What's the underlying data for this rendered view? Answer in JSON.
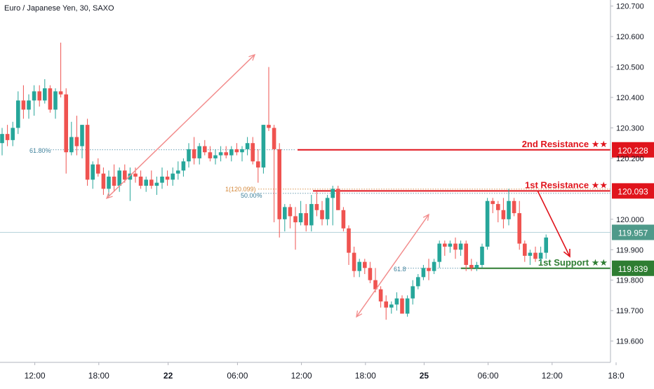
{
  "chart_data": {
    "type": "candlestick",
    "title": "Euro / Japanese Yen, 30, SAXO",
    "ylim": [
      119.53,
      120.72
    ],
    "x_ticks": [
      "12:00",
      "18:00",
      "22",
      "06:00",
      "12:00",
      "18:00",
      "25",
      "06:00",
      "12:00",
      "18:0"
    ],
    "y_ticks": [
      "120.700",
      "120.600",
      "120.500",
      "120.400",
      "120.300",
      "120.200",
      "120.000",
      "119.900",
      "119.800",
      "119.700",
      "119.600"
    ],
    "price_labels": [
      {
        "name": "2nd Resistance ★★",
        "value": 120.228,
        "text": "120.228",
        "color": "#e0141c"
      },
      {
        "name": "1st Resistance ★★",
        "value": 120.093,
        "text": "120.093",
        "color": "#e0141c"
      },
      {
        "name": "current",
        "value": 119.957,
        "text": "119.957",
        "color": "#4f9a8a"
      },
      {
        "name": "1st Support ★★",
        "value": 119.839,
        "text": "119.839",
        "color": "#2e7d32"
      }
    ],
    "annotations": [
      "61.80%",
      "1(120.099)",
      "50.00%",
      "61.8"
    ],
    "colors": {
      "up": "#26a69a",
      "down": "#ef5350",
      "fib": "#3c7f9a",
      "arrow": "#f28c8c"
    },
    "candles": [
      [
        120.25,
        120.3,
        120.21,
        120.28
      ],
      [
        120.28,
        120.31,
        120.24,
        120.26
      ],
      [
        120.26,
        120.32,
        120.24,
        120.3
      ],
      [
        120.3,
        120.42,
        120.28,
        120.39
      ],
      [
        120.39,
        120.44,
        120.33,
        120.36
      ],
      [
        120.36,
        120.41,
        120.33,
        120.39
      ],
      [
        120.39,
        120.44,
        120.34,
        120.42
      ],
      [
        120.42,
        120.44,
        120.37,
        120.39
      ],
      [
        120.39,
        120.46,
        120.38,
        120.43
      ],
      [
        120.43,
        120.44,
        120.35,
        120.36
      ],
      [
        120.36,
        120.43,
        120.33,
        120.42
      ],
      [
        120.42,
        120.58,
        120.4,
        120.41
      ],
      [
        120.41,
        120.43,
        120.15,
        120.22
      ],
      [
        120.22,
        120.32,
        120.21,
        120.27
      ],
      [
        120.27,
        120.34,
        120.21,
        120.24
      ],
      [
        120.24,
        120.31,
        120.2,
        120.31
      ],
      [
        120.31,
        120.33,
        120.11,
        120.13
      ],
      [
        120.13,
        120.19,
        120.1,
        120.18
      ],
      [
        120.18,
        120.2,
        120.14,
        120.15
      ],
      [
        120.15,
        120.17,
        120.08,
        120.1
      ],
      [
        120.1,
        120.16,
        120.07,
        120.14
      ],
      [
        120.14,
        120.18,
        120.09,
        120.11
      ],
      [
        120.11,
        120.17,
        120.09,
        120.16
      ],
      [
        120.16,
        120.18,
        120.12,
        120.13
      ],
      [
        120.13,
        120.17,
        120.06,
        120.15
      ],
      [
        120.15,
        120.17,
        120.12,
        120.14
      ],
      [
        120.14,
        120.16,
        120.1,
        120.11
      ],
      [
        120.11,
        120.14,
        120.09,
        120.13
      ],
      [
        120.13,
        120.16,
        120.1,
        120.11
      ],
      [
        120.11,
        120.14,
        120.08,
        120.12
      ],
      [
        120.12,
        120.17,
        120.1,
        120.14
      ],
      [
        120.14,
        120.16,
        120.11,
        120.13
      ],
      [
        120.13,
        120.17,
        120.11,
        120.15
      ],
      [
        120.15,
        120.19,
        120.13,
        120.16
      ],
      [
        120.16,
        120.2,
        120.14,
        120.19
      ],
      [
        120.19,
        120.25,
        120.17,
        120.23
      ],
      [
        120.23,
        120.27,
        120.18,
        120.2
      ],
      [
        120.2,
        120.25,
        120.18,
        120.24
      ],
      [
        120.24,
        120.26,
        120.21,
        120.22
      ],
      [
        120.22,
        120.24,
        120.19,
        120.2
      ],
      [
        120.2,
        120.23,
        120.18,
        120.21
      ],
      [
        120.21,
        120.24,
        120.19,
        120.22
      ],
      [
        120.22,
        120.24,
        120.2,
        120.21
      ],
      [
        120.21,
        120.24,
        120.19,
        120.23
      ],
      [
        120.23,
        120.25,
        120.21,
        120.22
      ],
      [
        120.22,
        120.24,
        120.19,
        120.23
      ],
      [
        120.23,
        120.27,
        120.21,
        120.25
      ],
      [
        120.25,
        120.27,
        120.18,
        120.19
      ],
      [
        120.19,
        120.23,
        120.12,
        120.17
      ],
      [
        120.17,
        120.31,
        120.15,
        120.31
      ],
      [
        120.31,
        120.5,
        120.29,
        120.3
      ],
      [
        120.3,
        120.31,
        119.99,
        120.23
      ],
      [
        120.23,
        120.25,
        119.94,
        120.0
      ],
      [
        120.0,
        120.05,
        119.96,
        120.04
      ],
      [
        120.04,
        120.05,
        119.97,
        120.01
      ],
      [
        120.01,
        120.04,
        119.9,
        119.99
      ],
      [
        119.99,
        120.06,
        119.98,
        120.02
      ],
      [
        120.02,
        120.05,
        119.96,
        119.98
      ],
      [
        119.98,
        120.08,
        119.96,
        120.05
      ],
      [
        120.05,
        120.09,
        120.01,
        120.03
      ],
      [
        120.03,
        120.06,
        119.98,
        120.0
      ],
      [
        120.0,
        120.08,
        119.98,
        120.07
      ],
      [
        120.07,
        120.11,
        119.98,
        120.1
      ],
      [
        120.1,
        120.11,
        120.03,
        120.03
      ],
      [
        120.03,
        120.04,
        119.96,
        119.97
      ],
      [
        119.97,
        119.98,
        119.85,
        119.89
      ],
      [
        119.89,
        119.91,
        119.81,
        119.83
      ],
      [
        119.83,
        119.87,
        119.81,
        119.86
      ],
      [
        119.86,
        119.87,
        119.82,
        119.84
      ],
      [
        119.84,
        119.86,
        119.79,
        119.8
      ],
      [
        119.8,
        119.84,
        119.76,
        119.77
      ],
      [
        119.77,
        119.78,
        119.71,
        119.73
      ],
      [
        119.73,
        119.75,
        119.67,
        119.71
      ],
      [
        119.71,
        119.73,
        119.69,
        119.72
      ],
      [
        119.72,
        119.76,
        119.7,
        119.74
      ],
      [
        119.74,
        119.75,
        119.69,
        119.69
      ],
      [
        119.69,
        119.75,
        119.68,
        119.74
      ],
      [
        119.74,
        119.8,
        119.72,
        119.78
      ],
      [
        119.78,
        119.82,
        119.77,
        119.81
      ],
      [
        119.81,
        119.85,
        119.8,
        119.84
      ],
      [
        119.84,
        119.87,
        119.8,
        119.83
      ],
      [
        119.83,
        119.87,
        119.82,
        119.86
      ],
      [
        119.86,
        119.93,
        119.84,
        119.92
      ],
      [
        119.92,
        119.93,
        119.88,
        119.91
      ],
      [
        119.91,
        119.93,
        119.89,
        119.92
      ],
      [
        119.92,
        119.94,
        119.87,
        119.9
      ],
      [
        119.9,
        119.93,
        119.88,
        119.92
      ],
      [
        119.92,
        119.93,
        119.83,
        119.85
      ],
      [
        119.85,
        119.87,
        119.83,
        119.84
      ],
      [
        119.84,
        119.86,
        119.83,
        119.85
      ],
      [
        119.85,
        119.92,
        119.84,
        119.91
      ],
      [
        119.91,
        120.07,
        119.9,
        120.06
      ],
      [
        120.06,
        120.07,
        120.02,
        120.05
      ],
      [
        120.05,
        120.06,
        119.99,
        120.03
      ],
      [
        120.03,
        120.07,
        119.97,
        120.0
      ],
      [
        120.0,
        120.1,
        119.98,
        120.06
      ],
      [
        120.06,
        120.07,
        120.01,
        120.02
      ],
      [
        120.02,
        120.06,
        119.9,
        119.92
      ],
      [
        119.92,
        119.93,
        119.86,
        119.88
      ],
      [
        119.88,
        119.9,
        119.85,
        119.89
      ],
      [
        119.89,
        119.91,
        119.86,
        119.87
      ],
      [
        119.87,
        119.91,
        119.86,
        119.89
      ],
      [
        119.89,
        119.95,
        119.87,
        119.94
      ]
    ]
  }
}
